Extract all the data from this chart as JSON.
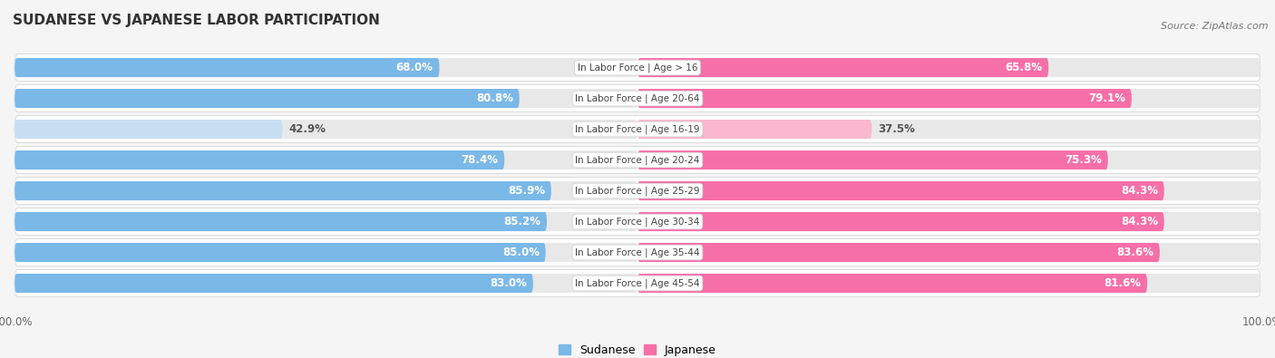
{
  "title": "SUDANESE VS JAPANESE LABOR PARTICIPATION",
  "source": "Source: ZipAtlas.com",
  "categories": [
    "In Labor Force | Age > 16",
    "In Labor Force | Age 20-64",
    "In Labor Force | Age 16-19",
    "In Labor Force | Age 20-24",
    "In Labor Force | Age 25-29",
    "In Labor Force | Age 30-34",
    "In Labor Force | Age 35-44",
    "In Labor Force | Age 45-54"
  ],
  "sudanese_values": [
    68.0,
    80.8,
    42.9,
    78.4,
    85.9,
    85.2,
    85.0,
    83.0
  ],
  "japanese_values": [
    65.8,
    79.1,
    37.5,
    75.3,
    84.3,
    84.3,
    83.6,
    81.6
  ],
  "sudanese_color": "#7ab8e8",
  "japanese_color": "#f76fa8",
  "sudanese_light_color": "#c8dff3",
  "japanese_light_color": "#f9b8cf",
  "row_bg_color": "#e8e8e8",
  "bar_bg_color": "#f0f0f0",
  "background_color": "#f5f5f5",
  "label_fontsize": 8.5,
  "title_fontsize": 11,
  "max_value": 100.0
}
